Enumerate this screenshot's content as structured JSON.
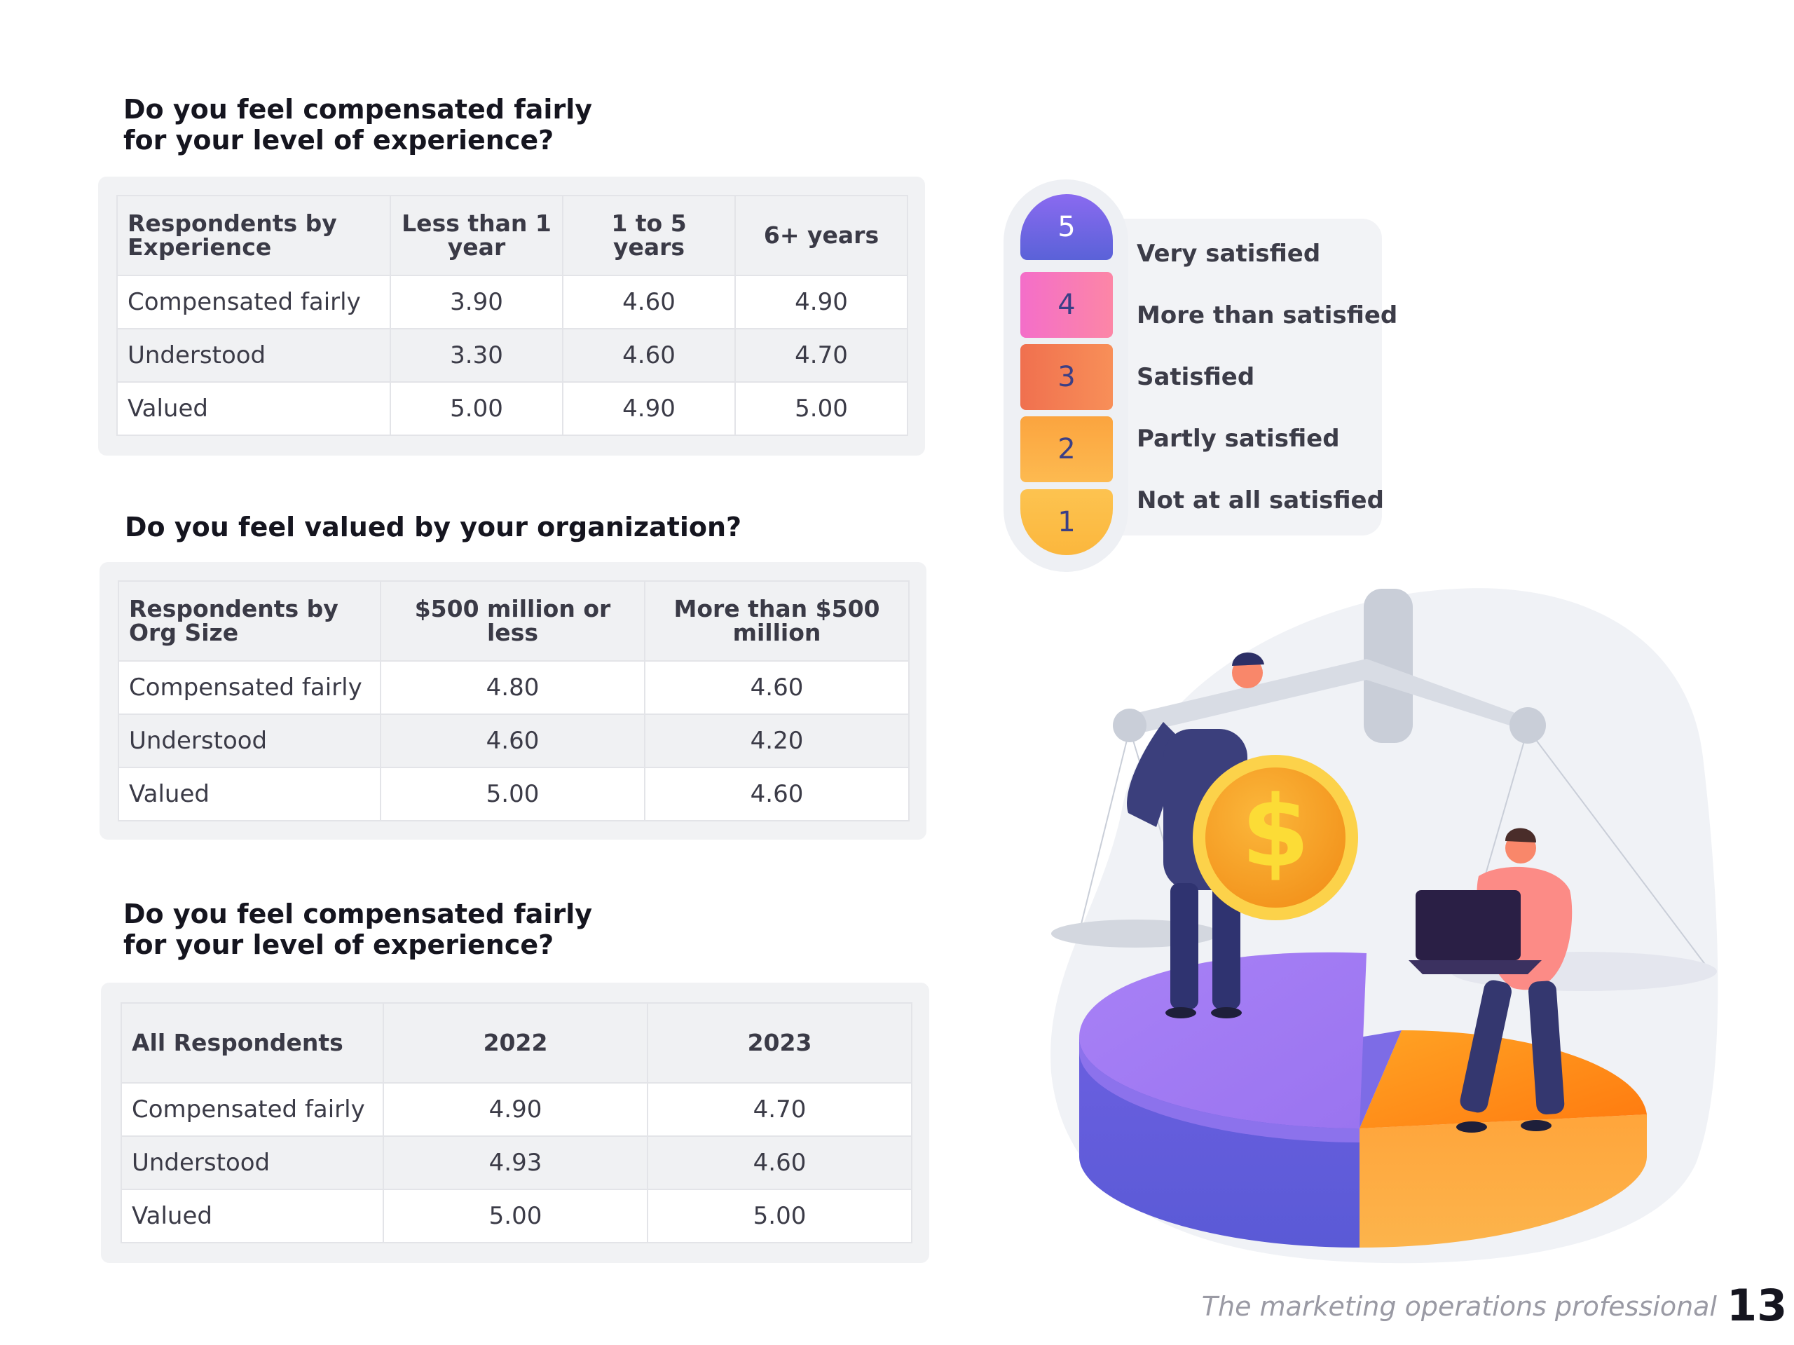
{
  "sections": [
    {
      "title_lines": [
        "Do you feel compensated fairly",
        "for your level of experience?"
      ],
      "headers": [
        "Respondents by Experience",
        "Less than 1 year",
        "1 to 5 years",
        "6+ years"
      ],
      "rows": [
        [
          "Compensated fairly",
          "3.90",
          "4.60",
          "4.90"
        ],
        [
          "Understood",
          "3.30",
          "4.60",
          "4.70"
        ],
        [
          "Valued",
          "5.00",
          "4.90",
          "5.00"
        ]
      ]
    },
    {
      "title_lines": [
        "Do you feel valued by your organization?"
      ],
      "headers": [
        "Respondents by Org Size",
        "$500 million or less",
        "More than $500 million"
      ],
      "rows": [
        [
          "Compensated fairly",
          "4.80",
          "4.60"
        ],
        [
          "Understood",
          "4.60",
          "4.20"
        ],
        [
          "Valued",
          "5.00",
          "4.60"
        ]
      ]
    },
    {
      "title_lines": [
        "Do you feel compensated fairly",
        "for your level of experience?"
      ],
      "headers": [
        "All Respondents",
        "2022",
        "2023"
      ],
      "rows": [
        [
          "Compensated fairly",
          "4.90",
          "4.70"
        ],
        [
          "Understood",
          "4.93",
          "4.60"
        ],
        [
          "Valued",
          "5.00",
          "5.00"
        ]
      ]
    }
  ],
  "rating_scale": [
    {
      "value": "5",
      "label": "Very satisfied",
      "color": "#7366e6"
    },
    {
      "value": "4",
      "label": "More than satisfied",
      "color": "#f879b8"
    },
    {
      "value": "3",
      "label": "Satisfied",
      "color": "#f47e53"
    },
    {
      "value": "2",
      "label": "Partly satisfied",
      "color": "#fcae47"
    },
    {
      "value": "1",
      "label": "Not at all satisfied",
      "color": "#fcbd47"
    }
  ],
  "illustration": {
    "icon": "balance-scale-coin-illustration",
    "coin_symbol": "$"
  },
  "footer": {
    "text": "The marketing operations professional",
    "page_number": "13"
  }
}
